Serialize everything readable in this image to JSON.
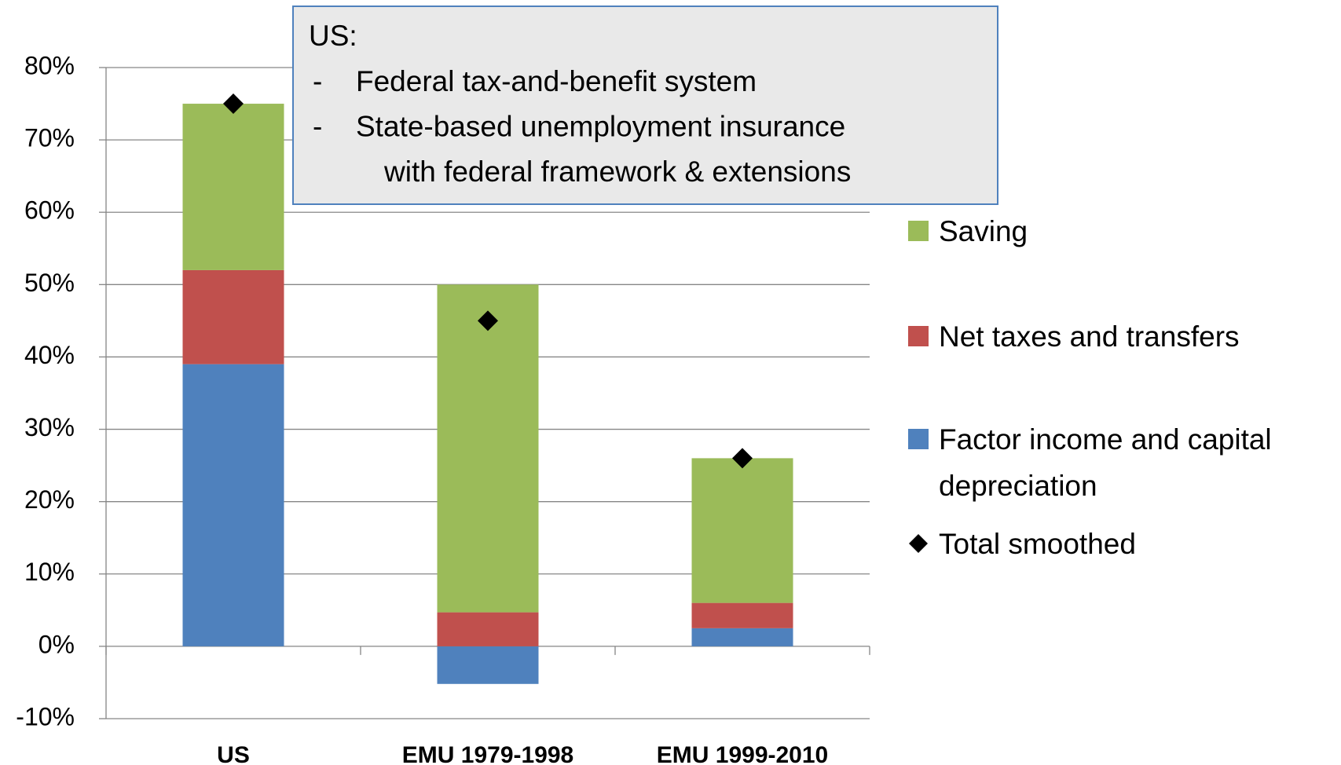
{
  "chart_data": {
    "type": "stacked-bar",
    "categories": [
      "US",
      "EMU 1979-1998",
      "EMU 1999-2010"
    ],
    "series": [
      {
        "name": "Factor income and capital depreciation",
        "color": "#4f81bd",
        "values": [
          39,
          -5.2,
          2.5
        ]
      },
      {
        "name": "Net taxes and transfers",
        "color": "#c0504d",
        "values": [
          13,
          4.7,
          3.5
        ]
      },
      {
        "name": "Saving",
        "color": "#9bbb59",
        "values": [
          23,
          45.3,
          20
        ]
      },
      {
        "name": "Total smoothed",
        "color": "#000000",
        "type": "scatter",
        "values": [
          75,
          45,
          26
        ]
      }
    ],
    "ylim": [
      -10,
      80
    ],
    "yticks": [
      {
        "value": -10,
        "label": "-10%"
      },
      {
        "value": 0,
        "label": "0%"
      },
      {
        "value": 10,
        "label": "10%"
      },
      {
        "value": 20,
        "label": "20%"
      },
      {
        "value": 30,
        "label": "30%"
      },
      {
        "value": 40,
        "label": "40%"
      },
      {
        "value": 50,
        "label": "50%"
      },
      {
        "value": 60,
        "label": "60%"
      },
      {
        "value": 70,
        "label": "70%"
      },
      {
        "value": 80,
        "label": "80%"
      }
    ],
    "grid": true,
    "legend": "right",
    "annotation": {
      "title": "US:",
      "items": [
        {
          "bullet": "-",
          "lines": [
            "Federal tax-and-benefit system"
          ]
        },
        {
          "bullet": "-",
          "lines": [
            "State-based unemployment insurance",
            "with federal framework & extensions"
          ]
        }
      ]
    }
  }
}
